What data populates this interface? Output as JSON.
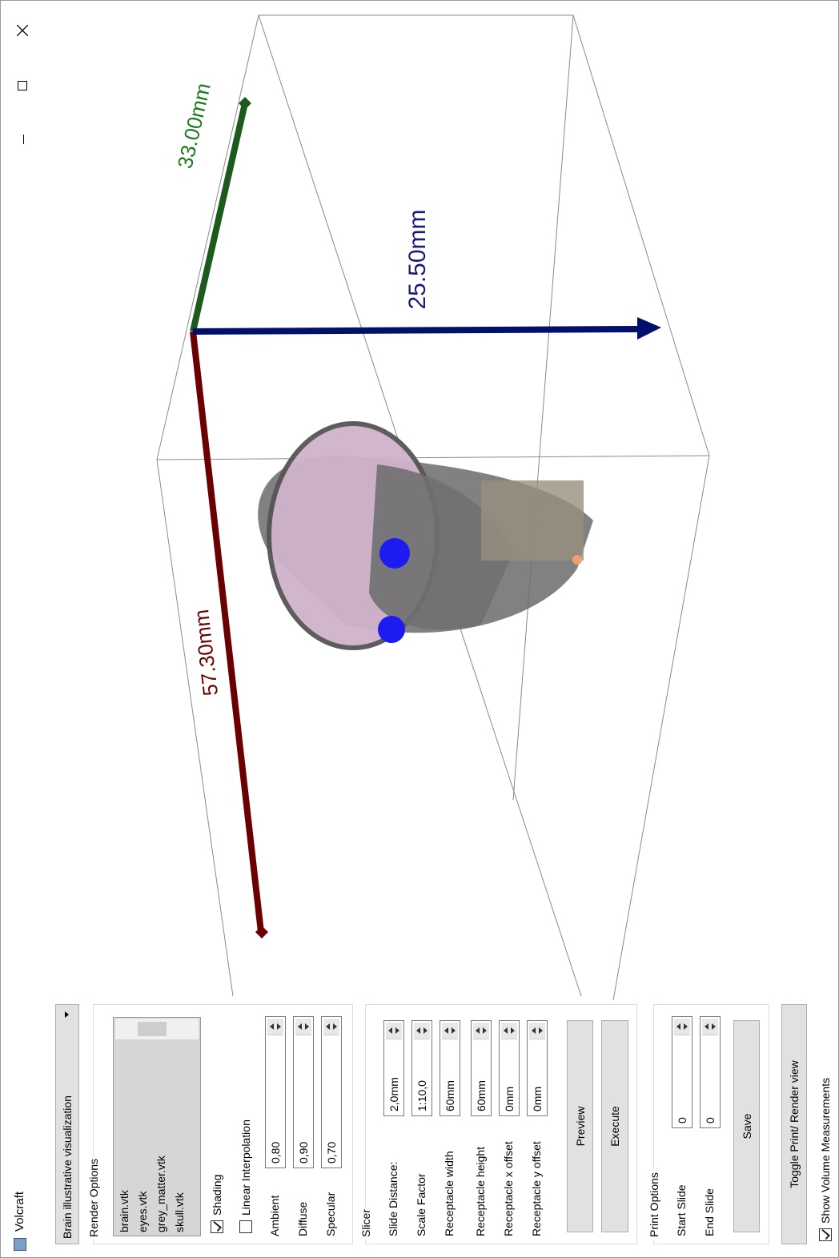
{
  "window": {
    "title": "Volcraft"
  },
  "panel": {
    "preset": "Brain illustrative visualization",
    "render_options": {
      "title": "Render Options",
      "files": [
        "brain.vtk",
        "eyes.vtk",
        "grey_matter.vtk",
        "skull.vtk"
      ],
      "shading": {
        "label": "Shading",
        "checked": true
      },
      "linear_interpolation": {
        "label": "Linear Interpolation",
        "checked": false
      },
      "lighting": [
        {
          "label": "Ambient",
          "value": "0,80"
        },
        {
          "label": "Diffuse",
          "value": "0,90"
        },
        {
          "label": "Specular",
          "value": "0,70"
        }
      ]
    },
    "slicer": {
      "title": "Slicer",
      "fields": [
        {
          "label": "Slide Distance:",
          "value": "2,0mm"
        },
        {
          "label": "Scale Factor",
          "value": "1:10,0"
        },
        {
          "label": "Receptacle width",
          "value": "60mm"
        },
        {
          "label": "Receptacle height",
          "value": "60mm"
        },
        {
          "label": "Receptacle x offset",
          "value": "0mm"
        },
        {
          "label": "Receptacle y offset",
          "value": "0mm"
        }
      ],
      "preview": "Preview",
      "execute": "Execute"
    },
    "print_options": {
      "title": "Print Options",
      "fields": [
        {
          "label": "Start Slide",
          "value": "0"
        },
        {
          "label": "End Slide",
          "value": "0"
        }
      ],
      "save": "Save"
    },
    "toggle_view": "Toggle Print/ Render view",
    "show_measurements": {
      "label": "Show Volume Measurements",
      "checked": true
    }
  },
  "viewport": {
    "measurements": [
      "57.30mm",
      "33.00mm",
      "25.50mm"
    ]
  }
}
